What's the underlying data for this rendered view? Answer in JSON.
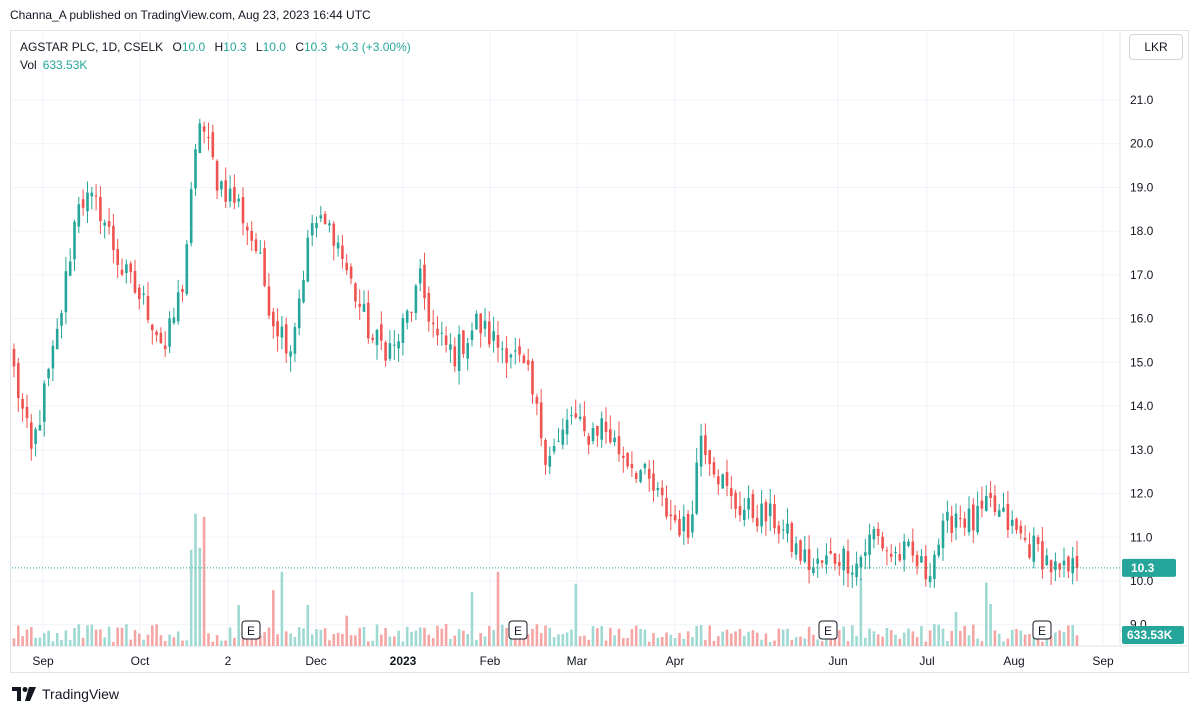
{
  "header": {
    "publisher": "Channa_A published on TradingView.com, Aug 23, 2023 16:44 UTC"
  },
  "legend": {
    "symbol": "AGSTAR PLC, 1D, CSELK",
    "o_label": "O",
    "o_value": "10.0",
    "h_label": "H",
    "h_value": "10.3",
    "l_label": "L",
    "l_value": "10.0",
    "c_label": "C",
    "c_value": "10.3",
    "change": "+0.3 (+3.00%)",
    "vol_label": "Vol",
    "vol_value": "633.53K"
  },
  "currency_button": "LKR",
  "price_badge": "10.3",
  "volume_badge": "633.53K",
  "earnings_marker": "E",
  "footer": {
    "brand": "TradingView"
  },
  "colors": {
    "up": "#26a69a",
    "down": "#ef5350",
    "up_vol": "#9ed9d3",
    "down_vol": "#f4a5a4",
    "grid": "#f0f3fa"
  },
  "chart_data": {
    "type": "candlestick",
    "y_ticks": [
      "21.0",
      "20.0",
      "19.0",
      "18.0",
      "17.0",
      "16.0",
      "15.0",
      "14.0",
      "13.0",
      "12.0",
      "11.0",
      "10.0",
      "9.0"
    ],
    "ylim": [
      8.9,
      21.5
    ],
    "x_ticks": [
      "Sep",
      "Oct",
      "2",
      "Dec",
      "2023",
      "Feb",
      "Mar",
      "Apr",
      "Jun",
      "Jul",
      "Aug",
      "Sep"
    ],
    "earnings_markers": 4,
    "last_price": 10.3,
    "anchors": [
      {
        "i": 0,
        "p": 14.8
      },
      {
        "i": 4,
        "p": 12.9
      },
      {
        "i": 10,
        "p": 15.6
      },
      {
        "i": 15,
        "p": 18.8
      },
      {
        "i": 20,
        "p": 18.5
      },
      {
        "i": 25,
        "p": 17.1
      },
      {
        "i": 31,
        "p": 16.2
      },
      {
        "i": 35,
        "p": 15.3
      },
      {
        "i": 39,
        "p": 16.8
      },
      {
        "i": 43,
        "p": 20.6
      },
      {
        "i": 47,
        "p": 19.2
      },
      {
        "i": 52,
        "p": 18.6
      },
      {
        "i": 56,
        "p": 17.6
      },
      {
        "i": 60,
        "p": 16.0
      },
      {
        "i": 64,
        "p": 15.4
      },
      {
        "i": 69,
        "p": 18.2
      },
      {
        "i": 74,
        "p": 18.0
      },
      {
        "i": 78,
        "p": 16.8
      },
      {
        "i": 83,
        "p": 15.5
      },
      {
        "i": 88,
        "p": 15.3
      },
      {
        "i": 94,
        "p": 16.8
      },
      {
        "i": 98,
        "p": 15.5
      },
      {
        "i": 102,
        "p": 15.2
      },
      {
        "i": 107,
        "p": 15.9
      },
      {
        "i": 112,
        "p": 15.4
      },
      {
        "i": 115,
        "p": 15.3
      },
      {
        "i": 119,
        "p": 14.6
      },
      {
        "i": 123,
        "p": 13.0
      },
      {
        "i": 126,
        "p": 13.1
      },
      {
        "i": 129,
        "p": 13.8
      },
      {
        "i": 132,
        "p": 13.3
      },
      {
        "i": 136,
        "p": 13.6
      },
      {
        "i": 140,
        "p": 13.0
      },
      {
        "i": 145,
        "p": 12.5
      },
      {
        "i": 151,
        "p": 11.6
      },
      {
        "i": 156,
        "p": 11.1
      },
      {
        "i": 159,
        "p": 13.4
      },
      {
        "i": 162,
        "p": 12.7
      },
      {
        "i": 166,
        "p": 11.8
      },
      {
        "i": 170,
        "p": 11.6
      },
      {
        "i": 176,
        "p": 11.4
      },
      {
        "i": 181,
        "p": 10.7
      },
      {
        "i": 185,
        "p": 10.3
      },
      {
        "i": 191,
        "p": 10.6
      },
      {
        "i": 195,
        "p": 10.4
      },
      {
        "i": 199,
        "p": 11.1
      },
      {
        "i": 203,
        "p": 10.6
      },
      {
        "i": 207,
        "p": 10.6
      },
      {
        "i": 211,
        "p": 10.2
      },
      {
        "i": 214,
        "p": 10.9
      },
      {
        "i": 218,
        "p": 11.6
      },
      {
        "i": 222,
        "p": 11.3
      },
      {
        "i": 226,
        "p": 11.7
      },
      {
        "i": 230,
        "p": 11.3
      },
      {
        "i": 234,
        "p": 10.9
      },
      {
        "i": 238,
        "p": 10.6
      },
      {
        "i": 242,
        "p": 10.1
      },
      {
        "i": 246,
        "p": 10.3
      }
    ]
  }
}
